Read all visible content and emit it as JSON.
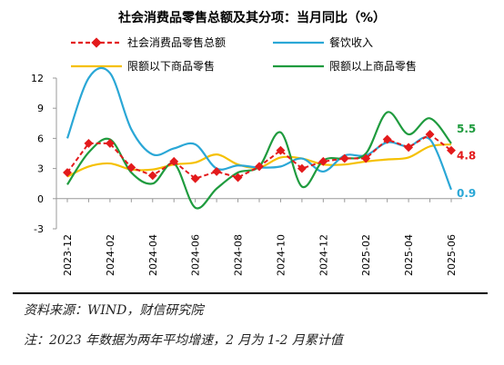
{
  "chart_data": {
    "type": "line",
    "title": "社会消费品零售总额及其分项：当月同比（%）",
    "xlabel": "",
    "ylabel": "",
    "ylim": [
      -3,
      12
    ],
    "yticks": [
      -3,
      0,
      3,
      6,
      9,
      12
    ],
    "x": [
      "2023-12",
      "2024-01",
      "2024-02",
      "2024-03",
      "2024-04",
      "2024-05",
      "2024-06",
      "2024-07",
      "2024-08",
      "2024-09",
      "2024-10",
      "2024-11",
      "2024-12",
      "2025-01",
      "2025-02",
      "2025-03",
      "2025-04",
      "2025-05",
      "2025-06"
    ],
    "xtick_labels": [
      "2023-12",
      "2024-02",
      "2024-04",
      "2024-06",
      "2024-08",
      "2024-10",
      "2024-12",
      "2025-02",
      "2025-04",
      "2025-06"
    ],
    "legend_position": "top",
    "grid": false,
    "series": [
      {
        "name": "社会消费品零售总额",
        "color": "#e31a1c",
        "style": "dashed-diamond",
        "values": [
          2.6,
          5.5,
          5.5,
          3.1,
          2.3,
          3.7,
          2.0,
          2.7,
          2.1,
          3.2,
          4.8,
          3.0,
          3.7,
          4.0,
          4.0,
          5.9,
          5.1,
          6.4,
          4.8
        ]
      },
      {
        "name": "餐饮收入",
        "color": "#2aa7d6",
        "style": "solid",
        "values": [
          6.0,
          12.0,
          12.5,
          6.9,
          4.4,
          5.0,
          5.4,
          3.0,
          3.3,
          3.1,
          3.2,
          4.0,
          2.7,
          4.3,
          4.3,
          5.6,
          5.2,
          5.9,
          0.9
        ]
      },
      {
        "name": "限额以下商品零售",
        "color": "#f5c000",
        "style": "solid",
        "values": [
          2.2,
          3.2,
          3.5,
          2.9,
          2.9,
          3.4,
          3.6,
          4.4,
          3.4,
          3.1,
          4.1,
          4.0,
          3.4,
          3.4,
          3.7,
          3.9,
          4.1,
          5.2,
          5.4
        ]
      },
      {
        "name": "限额以上商品零售",
        "color": "#1f9b3e",
        "style": "solid",
        "values": [
          1.4,
          4.6,
          5.9,
          2.6,
          1.5,
          3.5,
          -0.9,
          1.0,
          2.6,
          3.2,
          6.6,
          1.2,
          3.8,
          4.0,
          4.5,
          8.6,
          6.4,
          8.0,
          5.5
        ]
      }
    ],
    "end_labels": [
      {
        "series": 3,
        "text": "5.5",
        "color": "#1f9b3e"
      },
      {
        "series": 0,
        "text": "4.8",
        "color": "#e31a1c"
      },
      {
        "series": 1,
        "text": "0.9",
        "color": "#2aa7d6"
      }
    ]
  },
  "footer": {
    "source": "资料来源：WIND，财信研究院",
    "note": "注：2023 年数据为两年平均增速，2 月为 1-2 月累计值"
  }
}
